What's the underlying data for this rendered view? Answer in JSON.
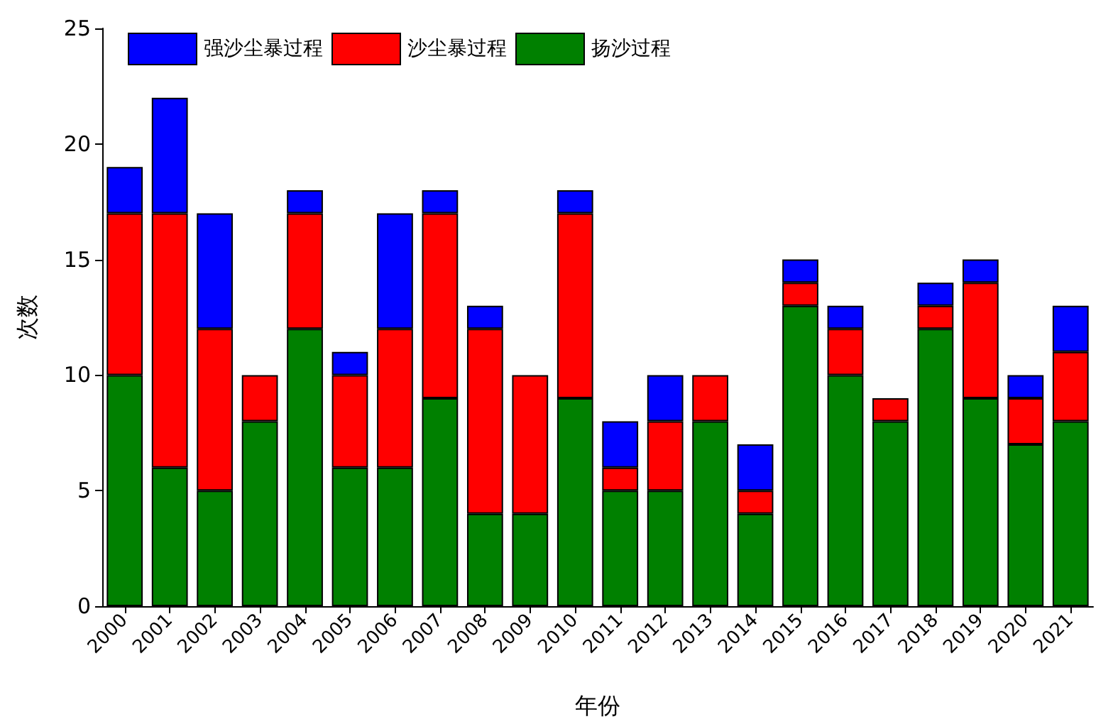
{
  "chart_data": {
    "type": "bar",
    "stacked": true,
    "xlabel": "年份",
    "ylabel": "次数",
    "categories": [
      "2000",
      "2001",
      "2002",
      "2003",
      "2004",
      "2005",
      "2006",
      "2007",
      "2008",
      "2009",
      "2010",
      "2011",
      "2012",
      "2013",
      "2014",
      "2015",
      "2016",
      "2017",
      "2018",
      "2019",
      "2020",
      "2021"
    ],
    "series": [
      {
        "name": "扬沙过程",
        "color": "#008000",
        "values": [
          10,
          6,
          5,
          8,
          12,
          6,
          6,
          9,
          4,
          4,
          9,
          5,
          5,
          8,
          4,
          13,
          10,
          8,
          12,
          9,
          7,
          8
        ]
      },
      {
        "name": "沙尘暴过程",
        "color": "#ff0000",
        "values": [
          7,
          11,
          7,
          2,
          5,
          4,
          6,
          8,
          8,
          6,
          8,
          1,
          3,
          2,
          1,
          1,
          2,
          1,
          1,
          5,
          2,
          3
        ]
      },
      {
        "name": "强沙尘暴过程",
        "color": "#0000ff",
        "values": [
          2,
          5,
          5,
          null,
          1,
          1,
          5,
          1,
          1,
          null,
          1,
          2,
          2,
          null,
          2,
          1,
          1,
          null,
          1,
          1,
          1,
          2
        ]
      }
    ],
    "ylim": [
      0,
      25
    ],
    "yticks": [
      0,
      5,
      10,
      15,
      20,
      25
    ],
    "grid": false,
    "legend": "top left"
  }
}
